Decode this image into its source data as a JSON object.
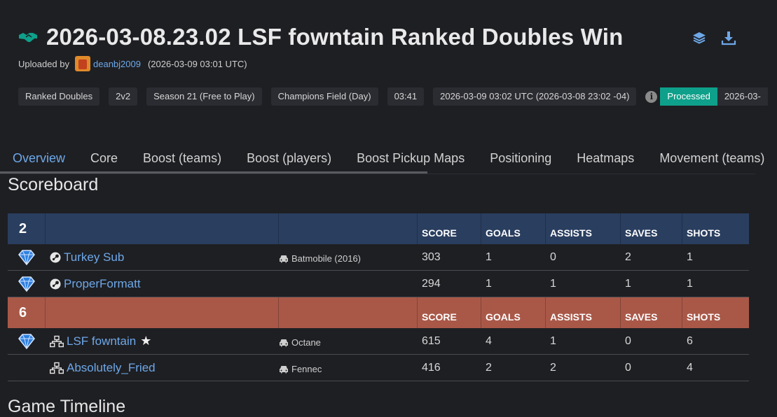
{
  "header": {
    "title": "2026-03-08.23.02 LSF fowntain Ranked Doubles Win",
    "uploaded_by_label": "Uploaded by",
    "uploader": "deanbj2009",
    "upload_time": "(2026-03-09 03:01 UTC)",
    "icons": [
      "handshake-icon",
      "layers-icon",
      "download-icon"
    ],
    "accent_color": "#6ea8e8"
  },
  "badges": {
    "playlist": "Ranked Doubles",
    "size": "2v2",
    "season": "Season 21 (Free to Play)",
    "map": "Champions Field (Day)",
    "duration": "03:41",
    "date": "2026-03-09 03:02 UTC (2026-03-08 23:02 -04)",
    "info_glyph": "i",
    "status": "Processed",
    "status_color": "#0ea08a",
    "processed_date": "2026-03-"
  },
  "tabs": [
    {
      "label": "Overview",
      "active": true
    },
    {
      "label": "Core"
    },
    {
      "label": "Boost (teams)"
    },
    {
      "label": "Boost (players)"
    },
    {
      "label": "Boost Pickup Maps"
    },
    {
      "label": "Positioning"
    },
    {
      "label": "Heatmaps"
    },
    {
      "label": "Movement (teams)"
    }
  ],
  "scoreboard": {
    "title": "Scoreboard",
    "columns": [
      "SCORE",
      "GOALS",
      "ASSISTS",
      "SAVES",
      "SHOTS"
    ],
    "teams": [
      {
        "goals": "2",
        "color": "#2a3e5f",
        "players": [
          {
            "name": "Turkey Sub",
            "platform": "steam",
            "car": "Batmobile (2016)",
            "score": "303",
            "goals": "1",
            "assists": "0",
            "saves": "2",
            "shots": "1",
            "rank_icon": "diamond-rank-icon"
          },
          {
            "name": "ProperFormatt",
            "platform": "steam",
            "car": "",
            "score": "294",
            "goals": "1",
            "assists": "1",
            "saves": "1",
            "shots": "1",
            "rank_icon": "diamond-rank-icon"
          }
        ]
      },
      {
        "goals": "6",
        "color": "#a95848",
        "players": [
          {
            "name": "LSF fowntain",
            "platform": "network",
            "mvp": true,
            "car": "Octane",
            "score": "615",
            "goals": "4",
            "assists": "1",
            "saves": "0",
            "shots": "6",
            "rank_icon": "diamond-rank-icon"
          },
          {
            "name": "Absolutely_Fried",
            "platform": "network",
            "car": "Fennec",
            "score": "416",
            "goals": "2",
            "assists": "2",
            "saves": "0",
            "shots": "4",
            "rank_icon": ""
          }
        ]
      }
    ]
  },
  "timeline": {
    "title": "Game Timeline"
  }
}
